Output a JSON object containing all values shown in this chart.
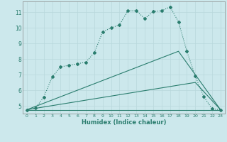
{
  "xlabel": "Humidex (Indice chaleur)",
  "background_color": "#cce8ec",
  "line_color": "#2a7d6e",
  "grid_color": "#b8d8dc",
  "xlim": [
    -0.5,
    23.5
  ],
  "ylim": [
    4.5,
    11.7
  ],
  "xticks": [
    0,
    1,
    2,
    3,
    4,
    5,
    6,
    7,
    8,
    9,
    10,
    11,
    12,
    13,
    14,
    15,
    16,
    17,
    18,
    19,
    20,
    21,
    22,
    23
  ],
  "yticks": [
    5,
    6,
    7,
    8,
    9,
    10,
    11
  ],
  "series_main": {
    "x": [
      0,
      1,
      2,
      3,
      4,
      5,
      6,
      7,
      8,
      9,
      10,
      11,
      12,
      13,
      14,
      15,
      16,
      17,
      18,
      19,
      20,
      21,
      22,
      23
    ],
    "y": [
      4.75,
      4.85,
      5.55,
      6.85,
      7.5,
      7.6,
      7.7,
      7.8,
      8.4,
      9.75,
      10.0,
      10.2,
      11.1,
      11.1,
      10.6,
      11.05,
      11.1,
      11.35,
      10.4,
      8.5,
      6.9,
      5.6,
      4.8,
      4.75
    ]
  },
  "series_lines": [
    {
      "x": [
        0,
        18,
        23
      ],
      "y": [
        4.75,
        8.5,
        4.75
      ]
    },
    {
      "x": [
        0,
        20,
        23
      ],
      "y": [
        4.75,
        6.5,
        4.75
      ]
    },
    {
      "x": [
        0,
        23
      ],
      "y": [
        4.75,
        4.75
      ]
    }
  ]
}
